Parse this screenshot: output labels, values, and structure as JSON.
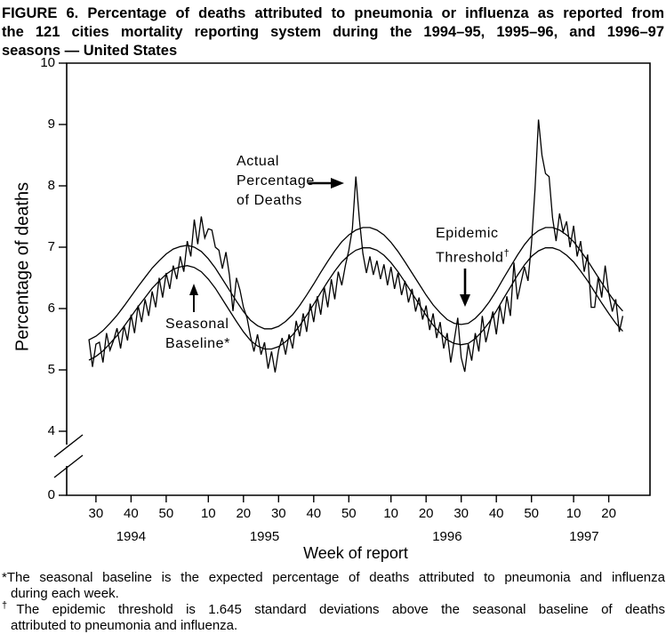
{
  "figure": {
    "title_lines": [
      "FIGURE 6. Percentage of deaths attributed to pneumonia or influenza as reported from",
      "the 121 cities mortality reporting system during the 1994–95, 1995–96, and 1996–97",
      "seasons — United States"
    ],
    "footnotes": [
      {
        "marker": "*",
        "line1": "The seasonal baseline is the expected percentage of deaths attributed to pneumonia and influenza",
        "line2": "during each week."
      },
      {
        "marker": "†",
        "line1": "The epidemic threshold is 1.645 standard deviations above the seasonal baseline of deaths",
        "line2": "attributed to pneumonia and influenza."
      }
    ]
  },
  "chart_data": {
    "type": "line",
    "title": "FIGURE 6. Percentage of deaths attributed to pneumonia or influenza as reported from the 121 cities mortality reporting system during the 1994–95, 1995–96, and 1996–97 seasons — United States",
    "xlabel": "Week of report",
    "ylabel": "Percentage of deaths",
    "ylim": [
      0,
      10
    ],
    "y_axis_break_between": [
      0,
      4
    ],
    "y_ticks": [
      10,
      9,
      8,
      7,
      6,
      5,
      4,
      0
    ],
    "grid": false,
    "x_start": "1994 week 28 (week_index 0), weekly resolution",
    "x_tick_labels": [
      "30",
      "40",
      "50",
      "10",
      "20",
      "30",
      "40",
      "50",
      "10",
      "20",
      "30",
      "40",
      "50",
      "10",
      "20"
    ],
    "x_tick_week_index": [
      2,
      12,
      22,
      34,
      44,
      54,
      64,
      74,
      86,
      96,
      106,
      116,
      126,
      138,
      148
    ],
    "year_labels": [
      {
        "label": "1994",
        "week_index": 12
      },
      {
        "label": "1995",
        "week_index": 50
      },
      {
        "label": "1996",
        "week_index": 102
      },
      {
        "label": "1997",
        "week_index": 141
      }
    ],
    "series": [
      {
        "id": "actual",
        "name": "Actual Percentage of Deaths",
        "week_step": 1,
        "values": [
          5.5,
          5.05,
          5.42,
          5.45,
          5.12,
          5.6,
          5.32,
          5.48,
          5.68,
          5.35,
          5.72,
          5.48,
          5.9,
          5.6,
          6.05,
          5.78,
          6.15,
          5.88,
          6.28,
          6.02,
          6.5,
          6.18,
          6.58,
          6.32,
          6.7,
          6.48,
          6.85,
          6.6,
          7.1,
          6.85,
          7.45,
          7.05,
          7.5,
          7.15,
          7.3,
          7.28,
          7.0,
          6.95,
          6.65,
          6.92,
          6.55,
          5.96,
          6.5,
          6.3,
          6.02,
          5.85,
          5.55,
          5.3,
          5.58,
          5.25,
          5.45,
          5.02,
          5.3,
          4.96,
          5.32,
          5.52,
          5.25,
          5.58,
          5.35,
          5.8,
          5.55,
          5.92,
          5.62,
          6.08,
          5.78,
          6.2,
          5.9,
          6.35,
          6.02,
          6.48,
          6.15,
          6.6,
          6.38,
          6.7,
          6.95,
          7.3,
          8.15,
          7.45,
          6.9,
          6.58,
          6.85,
          6.55,
          6.78,
          6.48,
          6.72,
          6.38,
          6.68,
          6.32,
          6.58,
          6.22,
          6.45,
          6.1,
          6.32,
          5.95,
          6.18,
          5.82,
          6.05,
          5.65,
          5.92,
          5.52,
          5.78,
          5.35,
          5.6,
          5.12,
          5.48,
          5.85,
          5.2,
          4.97,
          5.42,
          5.15,
          5.6,
          5.3,
          5.88,
          5.45,
          5.7,
          5.95,
          5.58,
          6.05,
          5.75,
          6.2,
          5.88,
          6.75,
          6.15,
          6.42,
          6.68,
          6.45,
          7.05,
          7.95,
          9.08,
          8.5,
          8.2,
          8.15,
          7.48,
          7.1,
          7.55,
          7.25,
          7.42,
          7.0,
          7.35,
          6.85,
          7.1,
          6.6,
          6.88,
          6.02,
          6.02,
          6.52,
          6.18,
          6.7,
          6.25,
          5.95,
          6.15,
          5.62,
          5.88
        ]
      },
      {
        "id": "baseline",
        "name": "Seasonal Baseline",
        "week_step": 2,
        "values": [
          5.16,
          5.22,
          5.31,
          5.43,
          5.56,
          5.71,
          5.87,
          6.03,
          6.18,
          6.33,
          6.45,
          6.56,
          6.64,
          6.68,
          6.7,
          6.67,
          6.6,
          6.48,
          6.33,
          6.15,
          5.97,
          5.79,
          5.62,
          5.48,
          5.39,
          5.34,
          5.34,
          5.38,
          5.46,
          5.57,
          5.72,
          5.89,
          6.07,
          6.26,
          6.44,
          6.61,
          6.76,
          6.87,
          6.95,
          6.99,
          6.99,
          6.95,
          6.87,
          6.75,
          6.6,
          6.43,
          6.25,
          6.07,
          5.89,
          5.73,
          5.6,
          5.49,
          5.43,
          5.41,
          5.43,
          5.51,
          5.63,
          5.78,
          5.96,
          6.16,
          6.35,
          6.54,
          6.71,
          6.85,
          6.94,
          6.99,
          6.99,
          6.95,
          6.87,
          6.76,
          6.61,
          6.45,
          6.27,
          6.09,
          5.92,
          5.76,
          5.63
        ]
      },
      {
        "id": "threshold",
        "name": "Epidemic Threshold",
        "week_step": 2,
        "values": [
          5.49,
          5.55,
          5.64,
          5.76,
          5.89,
          6.04,
          6.2,
          6.36,
          6.51,
          6.66,
          6.78,
          6.89,
          6.97,
          7.01,
          7.03,
          7.0,
          6.93,
          6.81,
          6.66,
          6.48,
          6.3,
          6.12,
          5.95,
          5.81,
          5.72,
          5.67,
          5.67,
          5.71,
          5.79,
          5.9,
          6.05,
          6.22,
          6.4,
          6.59,
          6.77,
          6.94,
          7.09,
          7.2,
          7.28,
          7.32,
          7.32,
          7.28,
          7.2,
          7.08,
          6.93,
          6.76,
          6.58,
          6.4,
          6.22,
          6.06,
          5.93,
          5.82,
          5.76,
          5.74,
          5.76,
          5.84,
          5.96,
          6.11,
          6.29,
          6.49,
          6.68,
          6.87,
          7.04,
          7.18,
          7.27,
          7.32,
          7.32,
          7.28,
          7.2,
          7.09,
          6.94,
          6.78,
          6.6,
          6.42,
          6.25,
          6.09,
          5.96
        ]
      }
    ],
    "annotations": {
      "actual": {
        "text": "Actual\nPercentage\nof Deaths",
        "arrow": "right"
      },
      "epidemic": {
        "line1": "Epidemic",
        "line2": "Threshold",
        "sup": "†",
        "arrow": "down"
      },
      "seasonal": {
        "line1": "Seasonal",
        "line2": "Baseline*",
        "arrow": "up"
      }
    }
  }
}
